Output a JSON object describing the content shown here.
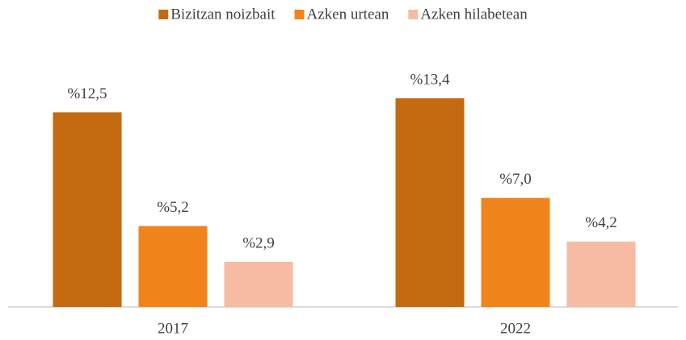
{
  "chart_data": {
    "type": "bar",
    "categories": [
      "2017",
      "2022"
    ],
    "series": [
      {
        "name": "Bizitzan noizbait",
        "color": "#c46a11",
        "values": [
          12.5,
          13.4
        ],
        "value_labels": [
          "%12,5",
          "%13,4"
        ]
      },
      {
        "name": "Azken urtean",
        "color": "#f0841b",
        "values": [
          5.2,
          7.0
        ],
        "value_labels": [
          "%5,2",
          "%7,0"
        ]
      },
      {
        "name": "Azken hilabetean",
        "color": "#f6bba2",
        "values": [
          2.9,
          4.2
        ],
        "value_labels": [
          "%2,9",
          "%4,2"
        ]
      }
    ]
  }
}
